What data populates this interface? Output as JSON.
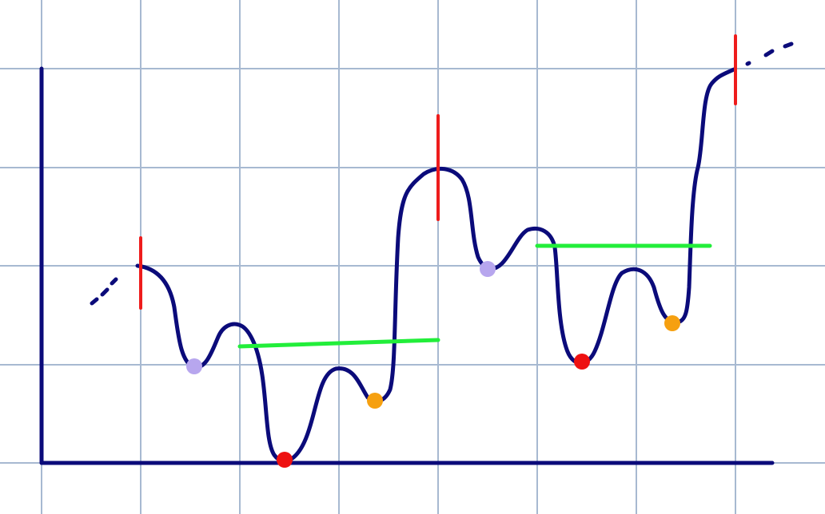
{
  "colors": {
    "background": "#ffffff",
    "grid": "#a7b9d1",
    "axis_and_curve": "#0b0b7a",
    "vertical_markers": "#ee1c1c",
    "horizontal_lines": "#22ee3a",
    "dot_lavender": "#b7a6ee",
    "dot_red": "#ee1111",
    "dot_orange": "#f6a010"
  },
  "diagram": {
    "type": "hand-drawn price-path sketch on grid",
    "grid": true,
    "vertical_markers_count": 3,
    "horizontal_lines_count": 2,
    "dots": [
      {
        "color": "lavender"
      },
      {
        "color": "red"
      },
      {
        "color": "orange"
      },
      {
        "color": "lavender"
      },
      {
        "color": "red"
      },
      {
        "color": "orange"
      }
    ]
  }
}
